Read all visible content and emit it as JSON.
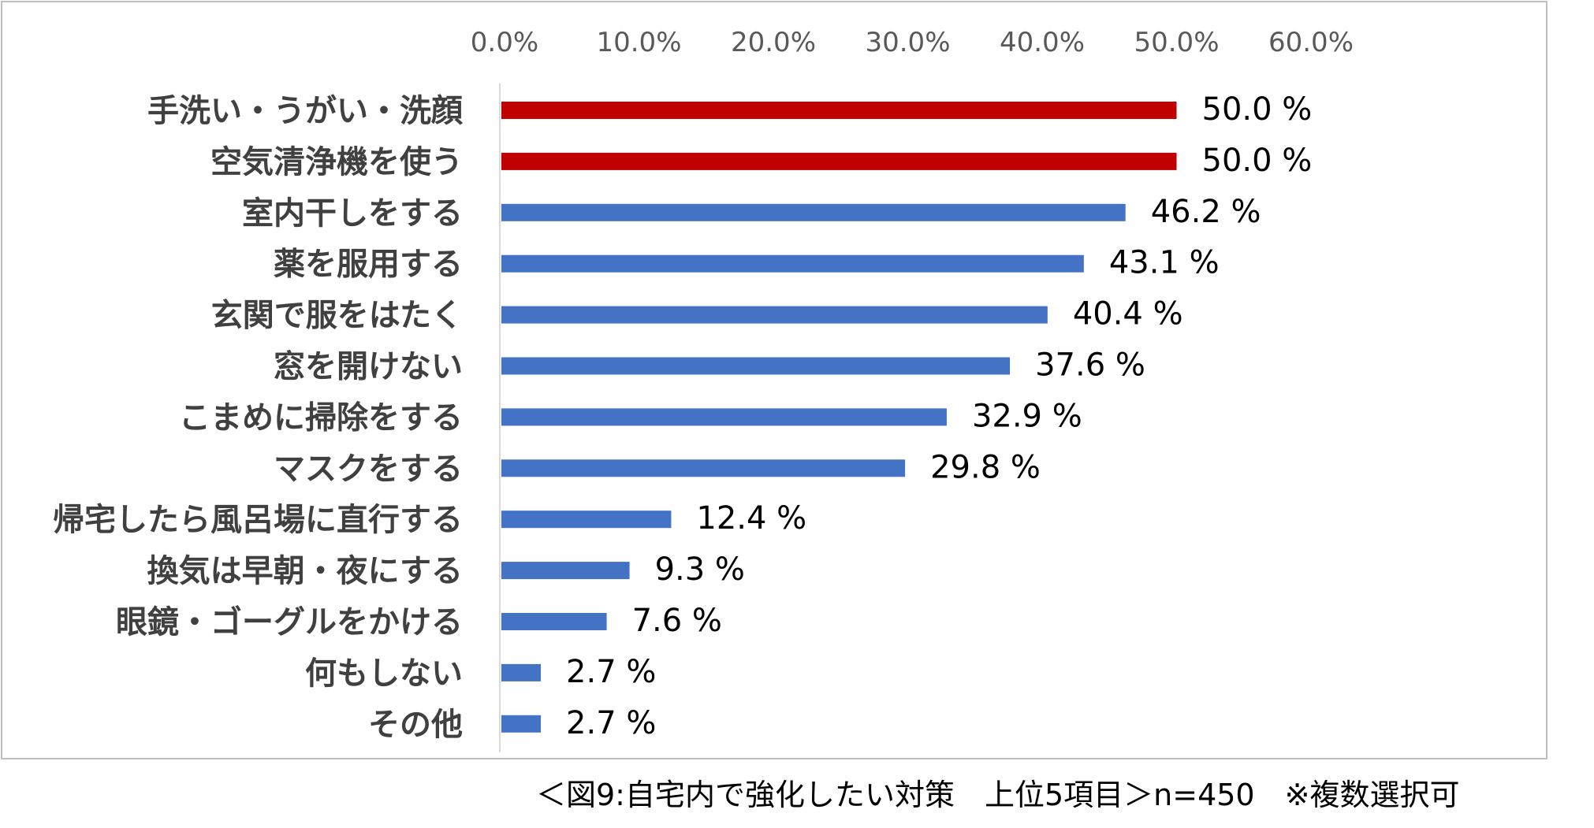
{
  "chart_data": {
    "type": "bar",
    "orientation": "horizontal",
    "categories": [
      "手洗い・うがい・洗顔",
      "空気清浄機を使う",
      "室内干しをする",
      "薬を服用する",
      "玄関で服をはたく",
      "窓を開けない",
      "こまめに掃除をする",
      "マスクをする",
      "帰宅したら風呂場に直行する",
      "換気は早朝・夜にする",
      "眼鏡・ゴーグルをかける",
      "何もしない",
      "その他"
    ],
    "values": [
      50.0,
      50.0,
      46.2,
      43.1,
      40.4,
      37.6,
      32.9,
      29.8,
      12.4,
      9.3,
      7.6,
      2.7,
      2.7
    ],
    "value_labels": [
      "50.0 %",
      "50.0 %",
      "46.2 %",
      "43.1 %",
      "40.4 %",
      "37.6 %",
      "32.9 %",
      "29.8 %",
      "12.4 %",
      "9.3 %",
      "7.6 %",
      "2.7 %",
      "2.7 %"
    ],
    "highlighted": [
      true,
      true,
      false,
      false,
      false,
      false,
      false,
      false,
      false,
      false,
      false,
      false,
      false
    ],
    "xlim": [
      0,
      60
    ],
    "xticks": [
      "0.0%",
      "10.0%",
      "20.0%",
      "30.0%",
      "40.0%",
      "50.0%",
      "60.0%"
    ],
    "xaxis_position": "top",
    "grid": false,
    "legend": "none",
    "colors": {
      "default": "#4472c4",
      "highlight": "#c00000"
    }
  },
  "caption": "＜図9:自宅内で強化したい対策　上位5項目＞n=450　※複数選択可"
}
